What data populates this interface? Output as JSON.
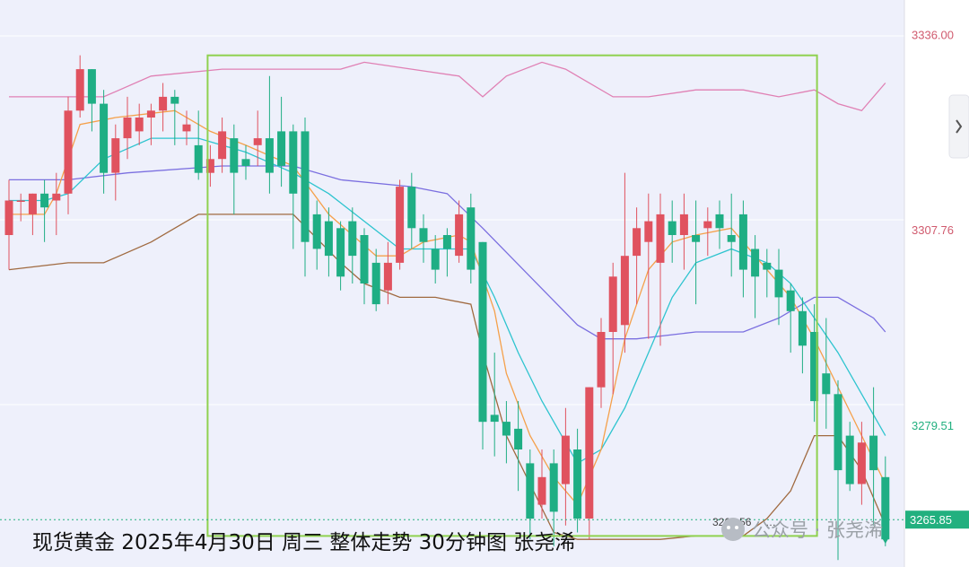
{
  "caption": "现货黄金 2025年4月30日 周三 整体走势 30分钟图 张尧浠",
  "watermark": "公众号 · 张尧浠",
  "min_label": "3262.56",
  "chart_data": {
    "type": "candlestick",
    "ylim": [
      3259,
      3341
    ],
    "y_ticks": [
      {
        "value": 3336.0,
        "label": "3336.00",
        "color": "#d05a6e"
      },
      {
        "value": 3307.76,
        "label": "3307.76",
        "color": "#d05a6e"
      },
      {
        "value": 3279.51,
        "label": "3279.51",
        "color": "#22b07f"
      },
      {
        "value": 3265.85,
        "label": "3265.85",
        "color": "#22b07f"
      }
    ],
    "current_price": {
      "value": 3265.85,
      "label": "3265.85",
      "color": "#22b07f"
    },
    "colors": {
      "up": "#e0525f",
      "down": "#1fae84",
      "ma_fast": "#f5a04a",
      "ma_mid": "#2ec4cf",
      "ma_slow": "#7b6fe0",
      "boll_upper": "#e080b4",
      "boll_lower": "#a06a40",
      "highlight_box": "#8fd14f",
      "plot_bg": "#eef0fb"
    },
    "candles": [
      [
        3307,
        3312,
        3302,
        3315
      ],
      [
        3312,
        3312,
        3309,
        3313
      ],
      [
        3310,
        3313,
        3307,
        3313
      ],
      [
        3313,
        3311,
        3306,
        3315
      ],
      [
        3312,
        3313,
        3307,
        3316
      ],
      [
        3313,
        3325,
        3310,
        3327
      ],
      [
        3325,
        3331,
        3324,
        3333
      ],
      [
        3331,
        3326,
        3322,
        3331
      ],
      [
        3326,
        3316,
        3313,
        3328
      ],
      [
        3316,
        3321,
        3312,
        3323
      ],
      [
        3321,
        3324,
        3318,
        3327
      ],
      [
        3322,
        3324,
        3320,
        3326
      ],
      [
        3324,
        3325,
        3320,
        3326
      ],
      [
        3325,
        3327,
        3322,
        3329
      ],
      [
        3327,
        3326,
        3320,
        3328
      ],
      [
        3322,
        3323,
        3320,
        3325
      ],
      [
        3320,
        3316,
        3315,
        3325
      ],
      [
        3316,
        3318,
        3314,
        3320
      ],
      [
        3318,
        3322,
        3316,
        3324
      ],
      [
        3321,
        3316,
        3310,
        3323
      ],
      [
        3318,
        3317,
        3315,
        3320
      ],
      [
        3320,
        3321,
        3317,
        3325
      ],
      [
        3321,
        3316,
        3313,
        3330
      ],
      [
        3322,
        3317,
        3314,
        3327
      ],
      [
        3322,
        3313,
        3305,
        3323
      ],
      [
        3322,
        3306,
        3301,
        3324
      ],
      [
        3310,
        3305,
        3302,
        3312
      ],
      [
        3309,
        3304,
        3301,
        3311
      ],
      [
        3308,
        3301,
        3299,
        3309
      ],
      [
        3309,
        3304,
        3300,
        3311
      ],
      [
        3307,
        3300,
        3297,
        3308
      ],
      [
        3303,
        3297,
        3296,
        3305
      ],
      [
        3299,
        3303,
        3297,
        3306
      ],
      [
        3303,
        3314,
        3302,
        3315
      ],
      [
        3314,
        3308,
        3305,
        3316
      ],
      [
        3308,
        3306,
        3303,
        3310
      ],
      [
        3305,
        3302,
        3300,
        3307
      ],
      [
        3307,
        3305,
        3301,
        3308
      ],
      [
        3304,
        3310,
        3303,
        3312
      ],
      [
        3311,
        3302,
        3300,
        3313
      ],
      [
        3306,
        3280,
        3276,
        3306
      ],
      [
        3281,
        3280,
        3275,
        3290
      ],
      [
        3280,
        3278,
        3274,
        3283
      ],
      [
        3279,
        3276,
        3270,
        3283
      ],
      [
        3274,
        3266,
        3263,
        3276
      ],
      [
        3268,
        3272,
        3266,
        3276
      ],
      [
        3274,
        3267,
        3262,
        3276
      ],
      [
        3271,
        3278,
        3265,
        3282
      ],
      [
        3276,
        3266,
        3264,
        3279
      ],
      [
        3266,
        3285,
        3263,
        3285
      ],
      [
        3285,
        3293,
        3282,
        3295
      ],
      [
        3293,
        3301,
        3284,
        3303
      ],
      [
        3294,
        3304,
        3290,
        3316
      ],
      [
        3304,
        3308,
        3297,
        3311
      ],
      [
        3306,
        3309,
        3292,
        3313
      ],
      [
        3303,
        3310,
        3291,
        3313
      ],
      [
        3309,
        3307,
        3303,
        3312
      ],
      [
        3307,
        3310,
        3302,
        3313
      ],
      [
        3307,
        3306,
        3297,
        3312
      ],
      [
        3308,
        3309,
        3304,
        3311
      ],
      [
        3310,
        3308,
        3305,
        3312
      ],
      [
        3307,
        3306,
        3301,
        3313
      ],
      [
        3310,
        3302,
        3298,
        3312
      ],
      [
        3305,
        3301,
        3295,
        3307
      ],
      [
        3303,
        3302,
        3298,
        3305
      ],
      [
        3302,
        3298,
        3294,
        3305
      ],
      [
        3299,
        3296,
        3290,
        3300
      ],
      [
        3296,
        3291,
        3287,
        3298
      ],
      [
        3293,
        3283,
        3280,
        3297
      ],
      [
        3287,
        3284,
        3279,
        3295
      ],
      [
        3284,
        3273,
        3260,
        3286
      ],
      [
        3278,
        3271,
        3270,
        3280
      ],
      [
        3271,
        3277,
        3268,
        3280
      ],
      [
        3278,
        3273,
        3265,
        3285
      ],
      [
        3272,
        3263,
        3262,
        3275
      ]
    ],
    "ma_fast": [
      [
        0,
        3310
      ],
      [
        3,
        3310
      ],
      [
        4,
        3313
      ],
      [
        5,
        3318
      ],
      [
        6,
        3323
      ],
      [
        9,
        3324
      ],
      [
        14,
        3325
      ],
      [
        17,
        3322
      ],
      [
        20,
        3320
      ],
      [
        24,
        3317
      ],
      [
        27,
        3310
      ],
      [
        29,
        3307
      ],
      [
        31,
        3304
      ],
      [
        33,
        3304
      ],
      [
        35,
        3306
      ],
      [
        38,
        3307
      ],
      [
        39,
        3306
      ],
      [
        41,
        3296
      ],
      [
        42,
        3287
      ],
      [
        44,
        3278
      ],
      [
        46,
        3272
      ],
      [
        48,
        3268
      ],
      [
        50,
        3276
      ],
      [
        52,
        3292
      ],
      [
        54,
        3302
      ],
      [
        56,
        3306
      ],
      [
        58,
        3307
      ],
      [
        61,
        3308
      ],
      [
        64,
        3302
      ],
      [
        66,
        3298
      ],
      [
        68,
        3292
      ],
      [
        70,
        3285
      ],
      [
        72,
        3278
      ],
      [
        74,
        3271
      ]
    ],
    "ma_mid": [
      [
        0,
        3312
      ],
      [
        3,
        3312
      ],
      [
        5,
        3313
      ],
      [
        8,
        3318
      ],
      [
        12,
        3321
      ],
      [
        16,
        3321
      ],
      [
        20,
        3319
      ],
      [
        24,
        3316
      ],
      [
        27,
        3313
      ],
      [
        30,
        3309
      ],
      [
        33,
        3305
      ],
      [
        36,
        3305
      ],
      [
        39,
        3305
      ],
      [
        41,
        3298
      ],
      [
        43,
        3290
      ],
      [
        45,
        3283
      ],
      [
        47,
        3277
      ],
      [
        48,
        3274
      ],
      [
        50,
        3276
      ],
      [
        52,
        3282
      ],
      [
        54,
        3290
      ],
      [
        56,
        3298
      ],
      [
        58,
        3303
      ],
      [
        61,
        3305
      ],
      [
        64,
        3303
      ],
      [
        66,
        3300
      ],
      [
        68,
        3295
      ],
      [
        70,
        3290
      ],
      [
        72,
        3284
      ],
      [
        74,
        3278
      ]
    ],
    "ma_slow": [
      [
        0,
        3315
      ],
      [
        5,
        3315
      ],
      [
        10,
        3316
      ],
      [
        18,
        3317
      ],
      [
        24,
        3317
      ],
      [
        28,
        3315
      ],
      [
        34,
        3314
      ],
      [
        37,
        3313
      ],
      [
        40,
        3308
      ],
      [
        44,
        3301
      ],
      [
        48,
        3294
      ],
      [
        50,
        3292
      ],
      [
        53,
        3292
      ],
      [
        58,
        3293
      ],
      [
        62,
        3293
      ],
      [
        65,
        3295
      ],
      [
        68,
        3298
      ],
      [
        70,
        3298
      ],
      [
        73,
        3295
      ],
      [
        74,
        3293
      ]
    ],
    "boll_upper": [
      [
        0,
        3327
      ],
      [
        8,
        3327
      ],
      [
        12,
        3330
      ],
      [
        18,
        3331
      ],
      [
        24,
        3331
      ],
      [
        28,
        3331
      ],
      [
        30,
        3332
      ],
      [
        34,
        3331
      ],
      [
        38,
        3330
      ],
      [
        40,
        3327
      ],
      [
        42,
        3330
      ],
      [
        45,
        3332
      ],
      [
        47,
        3331
      ],
      [
        48,
        3330
      ],
      [
        51,
        3327
      ],
      [
        54,
        3327
      ],
      [
        58,
        3328
      ],
      [
        62,
        3328
      ],
      [
        65,
        3327
      ],
      [
        68,
        3328
      ],
      [
        70,
        3326
      ],
      [
        72,
        3325
      ],
      [
        74,
        3329
      ]
    ],
    "boll_lower": [
      [
        0,
        3302
      ],
      [
        5,
        3303
      ],
      [
        8,
        3303
      ],
      [
        12,
        3306
      ],
      [
        16,
        3310
      ],
      [
        20,
        3310
      ],
      [
        24,
        3310
      ],
      [
        28,
        3303
      ],
      [
        30,
        3300
      ],
      [
        33,
        3298
      ],
      [
        36,
        3298
      ],
      [
        39,
        3297
      ],
      [
        40,
        3290
      ],
      [
        42,
        3278
      ],
      [
        44,
        3271
      ],
      [
        46,
        3264
      ],
      [
        48,
        3263
      ],
      [
        52,
        3263
      ],
      [
        55,
        3263
      ],
      [
        58,
        3263.5
      ],
      [
        62,
        3263.5
      ],
      [
        64,
        3266
      ],
      [
        66,
        3270
      ],
      [
        68,
        3278
      ],
      [
        70,
        3278
      ],
      [
        72,
        3273
      ],
      [
        74,
        3265
      ]
    ],
    "highlight_range": {
      "x_from": 17,
      "x_to": 68,
      "y_from": 3263.5,
      "y_to": 3333
    }
  }
}
